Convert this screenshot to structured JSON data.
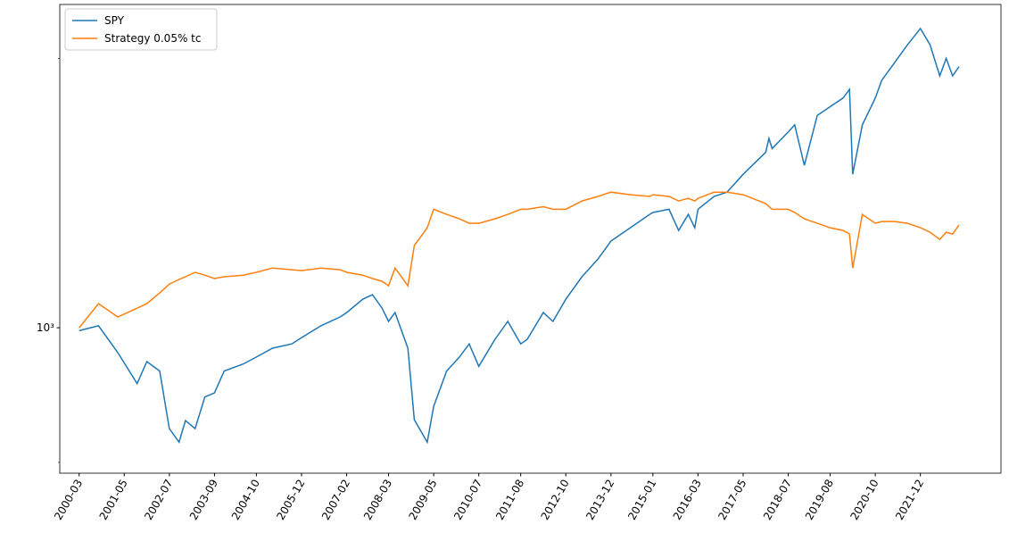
{
  "chart_data": {
    "type": "line",
    "yscale": "log",
    "legend": "upper left",
    "x": [
      "2000-03",
      "2000-09",
      "2001-03",
      "2001-09",
      "2001-12",
      "2002-04",
      "2002-07",
      "2002-10",
      "2002-12",
      "2003-03",
      "2003-06",
      "2003-09",
      "2003-12",
      "2004-06",
      "2004-10",
      "2005-03",
      "2005-09",
      "2005-12",
      "2006-06",
      "2006-12",
      "2007-02",
      "2007-07",
      "2007-10",
      "2008-01",
      "2008-03",
      "2008-05",
      "2008-09",
      "2008-11",
      "2009-03",
      "2009-05",
      "2009-09",
      "2010-01",
      "2010-04",
      "2010-07",
      "2010-12",
      "2011-04",
      "2011-08",
      "2011-10",
      "2012-03",
      "2012-06",
      "2012-10",
      "2013-03",
      "2013-08",
      "2013-12",
      "2014-06",
      "2014-12",
      "2015-01",
      "2015-06",
      "2015-09",
      "2015-12",
      "2016-02",
      "2016-03",
      "2016-08",
      "2016-12",
      "2017-05",
      "2017-12",
      "2018-01",
      "2018-02",
      "2018-07",
      "2018-09",
      "2018-12",
      "2019-04",
      "2019-08",
      "2019-12",
      "2020-02",
      "2020-03",
      "2020-06",
      "2020-10",
      "2020-12",
      "2021-04",
      "2021-08",
      "2021-12",
      "2022-03",
      "2022-06",
      "2022-08",
      "2022-10",
      "2022-12"
    ],
    "series": [
      {
        "name": "SPY",
        "color": "#1f77b4",
        "values": [
          985,
          1010,
          880,
          750,
          840,
          800,
          595,
          555,
          620,
          595,
          700,
          715,
          800,
          830,
          860,
          900,
          920,
          950,
          1010,
          1057,
          1081,
          1158,
          1185,
          1106,
          1033,
          1081,
          900,
          623,
          555,
          667,
          800,
          860,
          920,
          820,
          942,
          1033,
          920,
          942,
          1081,
          1033,
          1158,
          1300,
          1425,
          1562,
          1673,
          1792,
          1810,
          1840,
          1650,
          1792,
          1673,
          1840,
          1966,
          2010,
          2203,
          2467,
          2650,
          2515,
          2738,
          2840,
          2307,
          2982,
          3120,
          3262,
          3411,
          2203,
          2840,
          3262,
          3571,
          3915,
          4290,
          4665,
          4290,
          3655,
          4000,
          3655,
          3835
        ]
      },
      {
        "name": "Strategy 0.05% tc",
        "color": "#ff7f0e",
        "values": [
          1000,
          1132,
          1057,
          1106,
          1132,
          1196,
          1252,
          1282,
          1300,
          1330,
          1311,
          1288,
          1300,
          1311,
          1330,
          1360,
          1348,
          1342,
          1360,
          1348,
          1330,
          1311,
          1288,
          1270,
          1241,
          1360,
          1241,
          1526,
          1673,
          1840,
          1792,
          1752,
          1712,
          1712,
          1752,
          1792,
          1840,
          1840,
          1865,
          1840,
          1840,
          1920,
          1966,
          2010,
          1983,
          1966,
          1983,
          1966,
          1920,
          1946,
          1920,
          1946,
          2010,
          2010,
          1983,
          1895,
          1865,
          1840,
          1840,
          1810,
          1752,
          1712,
          1673,
          1650,
          1620,
          1360,
          1792,
          1712,
          1728,
          1728,
          1712,
          1673,
          1635,
          1576,
          1635,
          1620,
          1697
        ]
      }
    ],
    "xlim": [
      "1999-09",
      "2024-01"
    ],
    "xticks": [
      "2000-03",
      "2001-05",
      "2002-07",
      "2003-09",
      "2004-10",
      "2005-12",
      "2007-02",
      "2008-03",
      "2009-05",
      "2010-07",
      "2011-08",
      "2012-10",
      "2013-12",
      "2015-01",
      "2016-03",
      "2017-05",
      "2018-07",
      "2019-08",
      "2020-10",
      "2021-12"
    ],
    "ylim": [
      473,
      5280
    ],
    "yticks": [
      {
        "value": 1000,
        "label": "10³"
      }
    ],
    "minor_yticks": [
      500,
      4000
    ]
  }
}
